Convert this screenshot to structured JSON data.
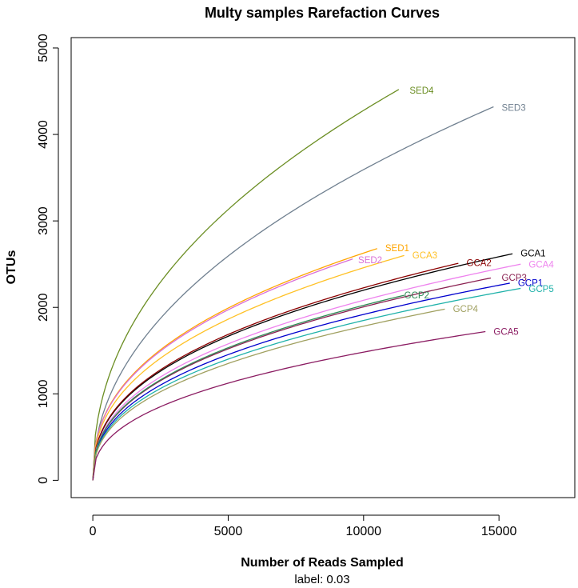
{
  "chart_data": {
    "type": "line",
    "title": "Multy samples Rarefaction Curves",
    "xlabel": "Number of Reads Sampled",
    "sublabel": "label: 0.03",
    "ylabel": "OTUs",
    "xlim": [
      -800,
      17800
    ],
    "ylim": [
      -200,
      5120
    ],
    "x_ticks": [
      0,
      5000,
      10000,
      15000
    ],
    "y_ticks": [
      0,
      1000,
      2000,
      3000,
      4000,
      5000
    ],
    "grid": false,
    "series": [
      {
        "name": "SED4",
        "color": "#6b8e23",
        "max_x": 11300,
        "max_y": 4520,
        "shape": 0.45
      },
      {
        "name": "SED3",
        "color": "#708090",
        "max_x": 14800,
        "max_y": 4320,
        "shape": 0.47
      },
      {
        "name": "SED1",
        "color": "#ffa500",
        "max_x": 10500,
        "max_y": 2680,
        "shape": 0.4
      },
      {
        "name": "SED2",
        "color": "#da70d6",
        "max_x": 9600,
        "max_y": 2560,
        "shape": 0.4
      },
      {
        "name": "GCA3",
        "color": "#ffc125",
        "max_x": 11500,
        "max_y": 2600,
        "shape": 0.4
      },
      {
        "name": "GCA1",
        "color": "#000000",
        "max_x": 15500,
        "max_y": 2620,
        "shape": 0.4
      },
      {
        "name": "GCA2",
        "color": "#8b0000",
        "max_x": 13500,
        "max_y": 2510,
        "shape": 0.4
      },
      {
        "name": "GCA4",
        "color": "#ee82ee",
        "max_x": 15800,
        "max_y": 2500,
        "shape": 0.4
      },
      {
        "name": "GCP3",
        "color": "#8b2252",
        "max_x": 14700,
        "max_y": 2340,
        "shape": 0.4
      },
      {
        "name": "GCP1",
        "color": "#0000cd",
        "max_x": 15400,
        "max_y": 2280,
        "shape": 0.4
      },
      {
        "name": "GCP5",
        "color": "#20b2aa",
        "max_x": 15800,
        "max_y": 2220,
        "shape": 0.4
      },
      {
        "name": "GCP2",
        "color": "#2e8b57",
        "max_x": 11500,
        "max_y": 2140,
        "shape": 0.4
      },
      {
        "name": "GCP4",
        "color": "#a0a060",
        "max_x": 13000,
        "max_y": 1980,
        "shape": 0.4
      },
      {
        "name": "GCA5",
        "color": "#8b1c62",
        "max_x": 14500,
        "max_y": 1720,
        "shape": 0.4
      }
    ],
    "labels": [
      {
        "name": "SED4",
        "color": "#6b8e23",
        "x": 11700,
        "y": 4510
      },
      {
        "name": "SED3",
        "color": "#708090",
        "x": 15100,
        "y": 4310
      },
      {
        "name": "SED1",
        "color": "#ffa500",
        "x": 10800,
        "y": 2685
      },
      {
        "name": "SED2",
        "color": "#da70d6",
        "x": 9800,
        "y": 2550
      },
      {
        "name": "GCA3",
        "color": "#ffc125",
        "x": 11800,
        "y": 2605
      },
      {
        "name": "GCA1",
        "color": "#000000",
        "x": 15800,
        "y": 2625
      },
      {
        "name": "GCA2",
        "color": "#8b0000",
        "x": 13800,
        "y": 2515
      },
      {
        "name": "GCA4",
        "color": "#ee82ee",
        "x": 16100,
        "y": 2495
      },
      {
        "name": "GCP3",
        "color": "#8b2252",
        "x": 15100,
        "y": 2345
      },
      {
        "name": "GCP1",
        "color": "#0000cd",
        "x": 15700,
        "y": 2285
      },
      {
        "name": "GCP5",
        "color": "#20b2aa",
        "x": 16100,
        "y": 2215
      },
      {
        "name": "GCP2",
        "color": "#2e8b57",
        "x": 11500,
        "y": 2140
      },
      {
        "name": "GCP4",
        "color": "#a0a060",
        "x": 13300,
        "y": 1985
      },
      {
        "name": "GCA5",
        "color": "#8b1c62",
        "x": 14800,
        "y": 1720
      }
    ]
  }
}
